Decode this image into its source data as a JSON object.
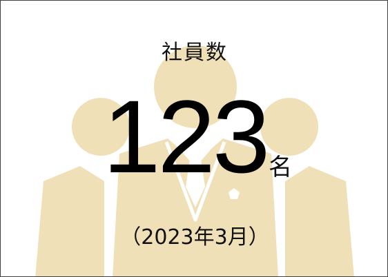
{
  "card": {
    "title": "社員数",
    "count": "123",
    "unit": "名",
    "as_of": "（2023年3月）"
  },
  "colors": {
    "silhouette": "#f0e0b8",
    "border": "#404040",
    "text": "#111111"
  },
  "icons": {
    "background": "people-group-icon"
  }
}
